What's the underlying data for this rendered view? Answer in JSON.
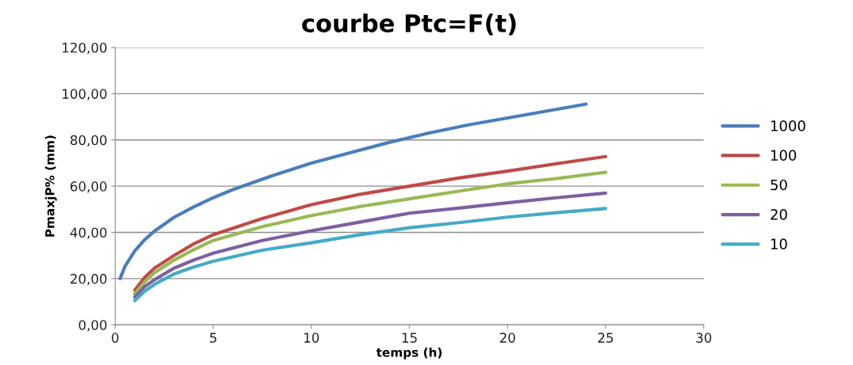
{
  "chart_data": {
    "type": "line",
    "title": "courbe Ptc=F(t)",
    "xlabel": "temps (h)",
    "ylabel": "PmaxjP% (mm)",
    "xlim": [
      0,
      30
    ],
    "xticks": [
      0,
      5,
      10,
      15,
      20,
      25,
      30
    ],
    "ylim": [
      0,
      120
    ],
    "yticks": [
      {
        "value": 0,
        "label": "0,00"
      },
      {
        "value": 20,
        "label": "20,00"
      },
      {
        "value": 40,
        "label": "40,00"
      },
      {
        "value": 60,
        "label": "60,00"
      },
      {
        "value": 80,
        "label": "80,00"
      },
      {
        "value": 100,
        "label": "100,00"
      },
      {
        "value": 120,
        "label": "120,00"
      }
    ],
    "grid": "y",
    "legend": "right",
    "marker": "none",
    "line_style": "solid",
    "series": [
      {
        "name": "1000",
        "color": "#4a7ebb",
        "x": [
          0.25,
          0.5,
          1,
          1.5,
          2,
          3,
          4,
          5,
          6,
          8,
          10,
          12,
          14,
          16,
          18,
          20,
          22,
          24
        ],
        "values": [
          20,
          25.3,
          32,
          36.8,
          40.5,
          46.5,
          51,
          55,
          58.5,
          64.5,
          70,
          74.5,
          79,
          83,
          86.5,
          89.5,
          92.5,
          95.5
        ]
      },
      {
        "name": "100",
        "color": "#be4b48",
        "x": [
          1,
          1.5,
          2,
          3,
          4,
          5,
          7.5,
          10,
          12.5,
          15,
          17.5,
          20,
          22.5,
          25
        ],
        "values": [
          15,
          20.5,
          24.5,
          30,
          35,
          39,
          46,
          52,
          56.5,
          60,
          63.5,
          66.5,
          69.7,
          72.8
        ]
      },
      {
        "name": "50",
        "color": "#98b954",
        "x": [
          1,
          1.5,
          2,
          3,
          4,
          5,
          7.5,
          10,
          12.5,
          15,
          17.5,
          20,
          22.5,
          25
        ],
        "values": [
          13.5,
          18.5,
          22.5,
          28,
          32.5,
          36.5,
          42.5,
          47.3,
          51.2,
          54.5,
          57.8,
          61,
          63.3,
          66
        ]
      },
      {
        "name": "20",
        "color": "#7d60a0",
        "x": [
          1,
          1.5,
          2,
          3,
          4,
          5,
          7.5,
          10,
          12.5,
          15,
          17.5,
          20,
          22.5,
          25
        ],
        "values": [
          12,
          16.5,
          19.5,
          24.5,
          28,
          31,
          36.5,
          40.7,
          44.5,
          48.3,
          50.5,
          52.8,
          55,
          57
        ]
      },
      {
        "name": "10",
        "color": "#46aac5",
        "x": [
          1,
          1.5,
          2,
          3,
          4,
          5,
          7.5,
          10,
          12.5,
          15,
          17.5,
          20,
          22.5,
          25
        ],
        "values": [
          10.5,
          14.5,
          17.5,
          22,
          25,
          27.5,
          32.3,
          35.5,
          39,
          42,
          44.2,
          46.6,
          48.5,
          50.3
        ]
      }
    ]
  }
}
